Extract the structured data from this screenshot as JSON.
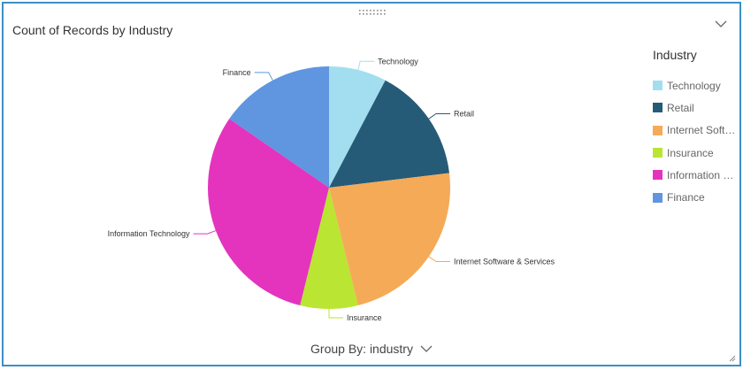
{
  "widget": {
    "title": "Count of Records by Industry",
    "group_by_label": "Group By: industry",
    "icons": {
      "drag": "drag-handle-icon",
      "collapse": "chevron-down-icon",
      "group_by": "chevron-down-icon",
      "resize": "resize-grip-icon"
    },
    "colors": {
      "border": "#3c8fc4"
    }
  },
  "legend": {
    "title": "Industry",
    "items": [
      {
        "label": "Technology",
        "color": "#a2def0"
      },
      {
        "label": "Retail",
        "color": "#265b78"
      },
      {
        "label": "Internet Soft…",
        "color": "#f5aa57"
      },
      {
        "label": "Insurance",
        "color": "#bae532"
      },
      {
        "label": "Information …",
        "color": "#e434bd"
      },
      {
        "label": "Finance",
        "color": "#6095e0"
      }
    ]
  },
  "chart_data": {
    "type": "pie",
    "title": "Count of Records by Industry",
    "legend_title": "Industry",
    "legend_position": "right",
    "categories": [
      "Technology",
      "Retail",
      "Internet Software & Services",
      "Insurance",
      "Information Technology",
      "Finance"
    ],
    "values": [
      1,
      2,
      3,
      1,
      4,
      2
    ],
    "colors": [
      "#a2def0",
      "#265b78",
      "#f5aa57",
      "#bae532",
      "#e434bd",
      "#6095e0"
    ]
  }
}
